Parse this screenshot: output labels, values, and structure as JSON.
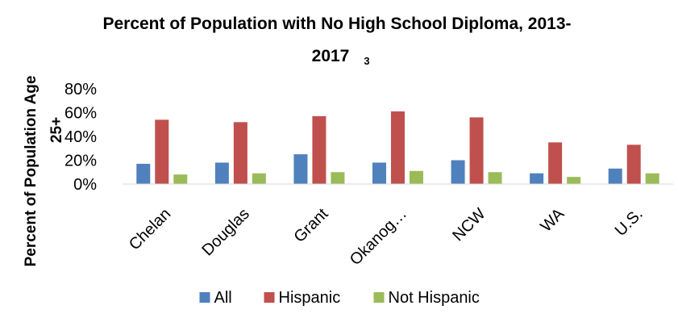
{
  "chart_data": {
    "type": "bar",
    "title": "Percent of Population with No High School Diploma, 2013-",
    "title_line2": "2017",
    "title_superscript": "3",
    "ylabel_line1": "Percent of Population Age",
    "ylabel_line2": "25+",
    "ylim": [
      0,
      80
    ],
    "yticks": [
      "80%",
      "60%",
      "40%",
      "20%",
      "0%"
    ],
    "ytick_values": [
      80,
      60,
      40,
      20,
      0
    ],
    "categories": [
      "Chelan",
      "Douglas",
      "Grant",
      "Okanog…",
      "NCW",
      "WA",
      "U.S."
    ],
    "series": [
      {
        "name": "All",
        "color": "#4F81BD",
        "values": [
          17,
          18,
          25,
          18,
          20,
          9,
          13
        ]
      },
      {
        "name": "Hispanic",
        "color": "#C0504D",
        "values": [
          54,
          52,
          57,
          61,
          56,
          35,
          33
        ]
      },
      {
        "name": "Not Hispanic",
        "color": "#9BBB59",
        "values": [
          8,
          9,
          10,
          11,
          10,
          6,
          9
        ]
      }
    ],
    "grid": false,
    "legend_position": "bottom"
  }
}
